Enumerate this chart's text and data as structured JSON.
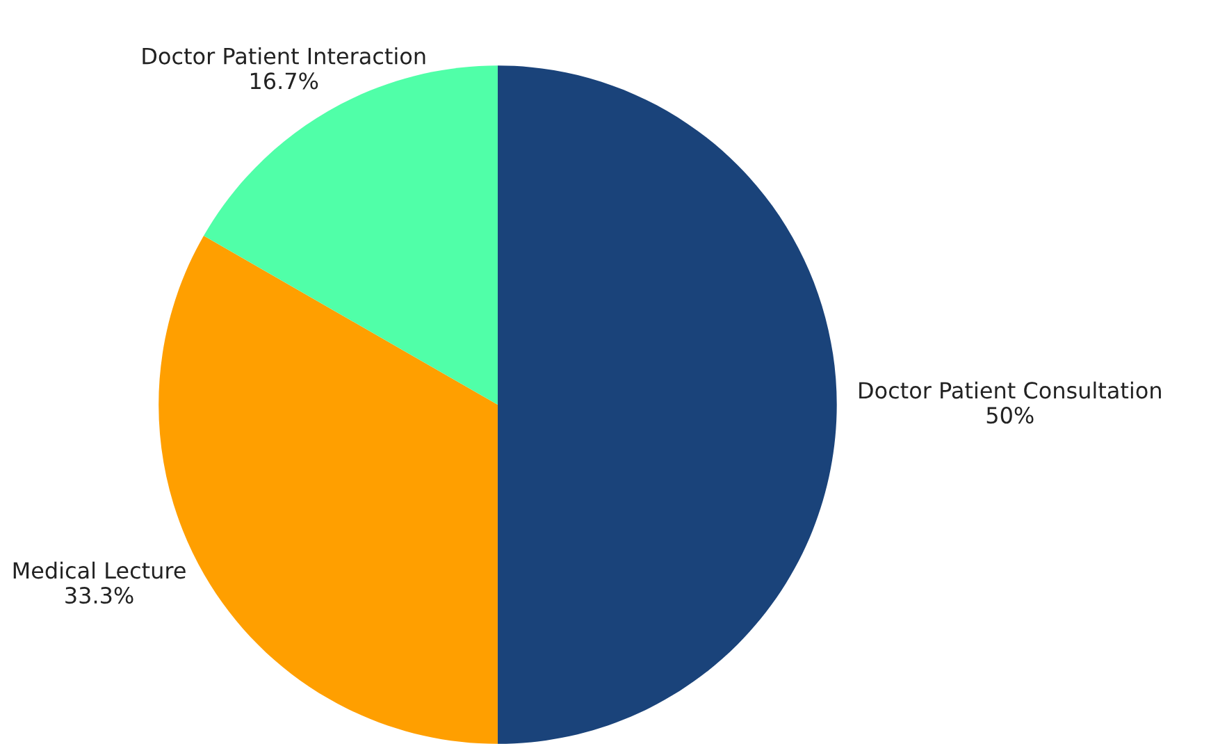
{
  "chart_data": {
    "type": "pie",
    "categories": [
      "Doctor Patient Consultation",
      "Medical Lecture",
      "Doctor Patient Interaction"
    ],
    "values": [
      50,
      33.3,
      16.7
    ],
    "value_labels": [
      "50%",
      "33.3%",
      "16.7%"
    ],
    "colors": [
      "#1a437a",
      "#ff9f00",
      "#50ffa8"
    ],
    "legend": false
  }
}
